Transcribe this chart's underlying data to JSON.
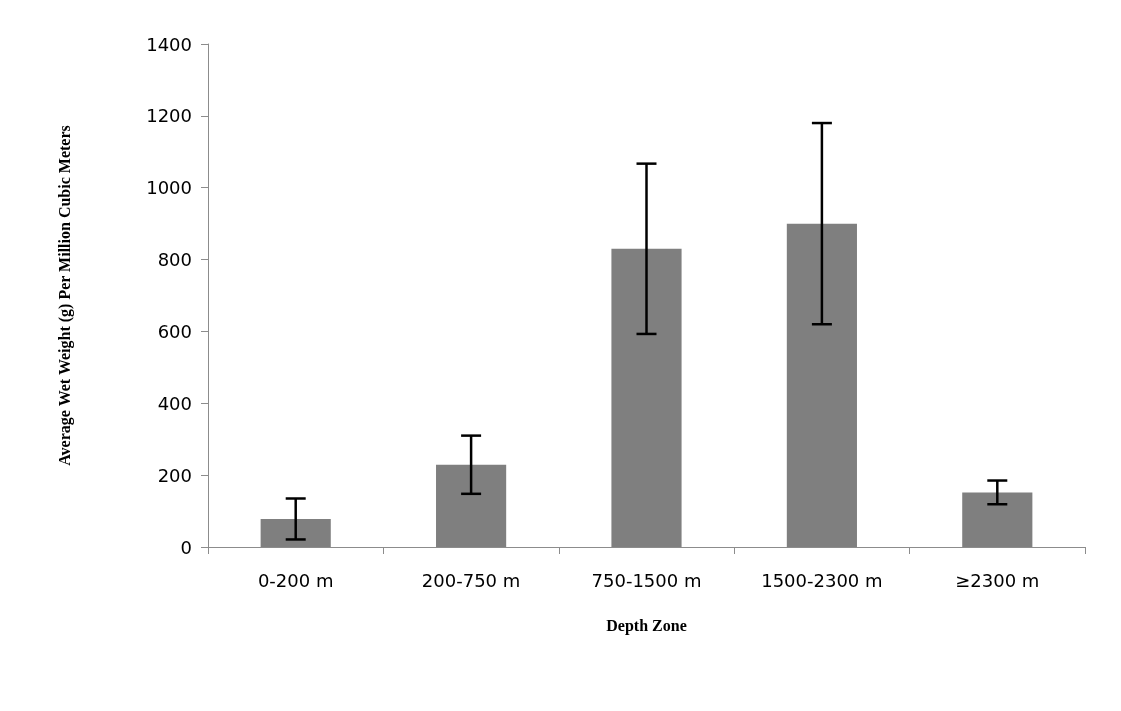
{
  "chart_data": {
    "type": "bar",
    "xlabel": "Depth Zone",
    "ylabel": "Average Wet Weight (g) Per Million Cubic Meters",
    "categories": [
      "0-200 m",
      "200-750 m",
      "750-1500 m",
      "1500-2300 m",
      "≥2300 m"
    ],
    "values": [
      78,
      229,
      830,
      900,
      152
    ],
    "errors": [
      57,
      81,
      237,
      280,
      33
    ],
    "color": "#7f7f7f",
    "ylim": [
      0,
      1400
    ],
    "yticks": [
      0,
      200,
      400,
      600,
      800,
      1000,
      1200,
      1400
    ],
    "grid": false
  }
}
